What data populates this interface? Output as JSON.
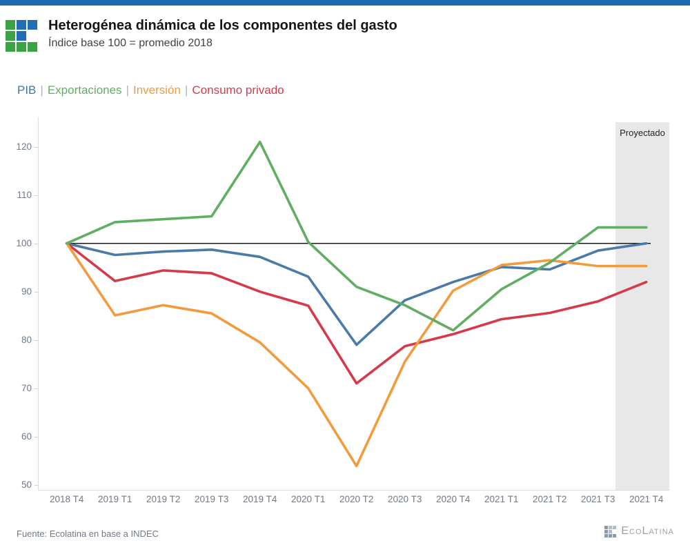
{
  "header": {
    "title": "Heterogénea dinámica de los componentes del gasto",
    "subtitle": "Índice base 100 = promedio 2018"
  },
  "legend": {
    "separator": "|",
    "items": [
      {
        "label": "PIB",
        "color": "#3d76a8"
      },
      {
        "label": "Exportaciones",
        "color": "#5fae62"
      },
      {
        "label": "Inversión",
        "color": "#f0993f"
      },
      {
        "label": "Consumo privado",
        "color": "#d63a4a"
      }
    ]
  },
  "chart_data": {
    "type": "line",
    "title": "Heterogénea dinámica de los componentes del gasto",
    "subtitle": "Índice base 100 = promedio 2018",
    "categories": [
      "2018 T4",
      "2019 T1",
      "2019 T2",
      "2019 T3",
      "2019 T4",
      "2020 T1",
      "2020 T2",
      "2020 T3",
      "2020 T4",
      "2021 T1",
      "2021 T2",
      "2021 T3",
      "2021 T4"
    ],
    "series": [
      {
        "name": "PIB",
        "color": "#4a7aa8",
        "values": [
          100,
          97.6,
          98.3,
          98.7,
          97.2,
          93.1,
          79.0,
          88.2,
          92.0,
          95.1,
          94.6,
          98.5,
          100.0
        ]
      },
      {
        "name": "Exportaciones",
        "color": "#5fae62",
        "values": [
          100,
          104.4,
          105.0,
          105.6,
          121.0,
          100.3,
          91.0,
          87.2,
          82.0,
          90.5,
          96.0,
          103.3,
          103.3
        ]
      },
      {
        "name": "Inversión",
        "color": "#f29b3d",
        "values": [
          100,
          85.1,
          87.2,
          85.5,
          79.5,
          70.0,
          53.9,
          75.5,
          90.2,
          95.5,
          96.5,
          95.3,
          95.3
        ]
      },
      {
        "name": "Consumo privado",
        "color": "#d63a4a",
        "values": [
          100,
          92.2,
          94.4,
          93.8,
          90.0,
          87.1,
          71.0,
          78.7,
          81.2,
          84.3,
          85.6,
          88.0,
          92.0
        ]
      }
    ],
    "y_ticks": [
      50,
      60,
      70,
      80,
      90,
      100,
      110,
      120
    ],
    "ylim": [
      49,
      126
    ],
    "baseline": 100,
    "grid": "off",
    "legend_position": "top-left-inline",
    "projected_label": "Proyectado",
    "projected_span": [
      "2021 T3",
      "2021 T4"
    ]
  },
  "footer": {
    "source": "Fuente: Ecolatina en base a INDEC",
    "brand": "EcoLatina"
  },
  "colors": {
    "topbar": "#1e6cb0",
    "logo_green": "#3aa444",
    "logo_blue": "#1f6db4",
    "projected_band": "#e8e8e8",
    "baseline": "#1a1a1a",
    "axis_text": "#6f7988"
  }
}
